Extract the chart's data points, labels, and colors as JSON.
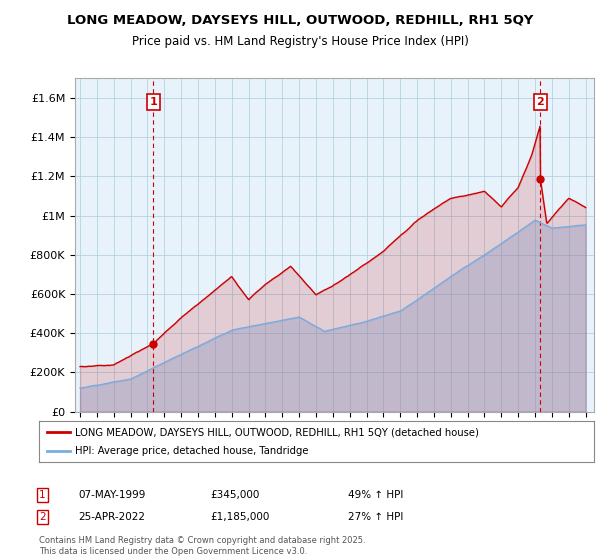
{
  "title": "LONG MEADOW, DAYSEYS HILL, OUTWOOD, REDHILL, RH1 5QY",
  "subtitle": "Price paid vs. HM Land Registry's House Price Index (HPI)",
  "legend_line1": "LONG MEADOW, DAYSEYS HILL, OUTWOOD, REDHILL, RH1 5QY (detached house)",
  "legend_line2": "HPI: Average price, detached house, Tandridge",
  "annotation1_date": "07-MAY-1999",
  "annotation1_price": "£345,000",
  "annotation1_hpi": "49% ↑ HPI",
  "annotation2_date": "25-APR-2022",
  "annotation2_price": "£1,185,000",
  "annotation2_hpi": "27% ↑ HPI",
  "footer": "Contains HM Land Registry data © Crown copyright and database right 2025.\nThis data is licensed under the Open Government Licence v3.0.",
  "red_color": "#cc0000",
  "blue_color": "#7aace0",
  "blue_fill": "#dce9f5",
  "chart_bg": "#e8f2fa",
  "grid_color": "#aaccdd",
  "background_color": "#ffffff",
  "ylim": [
    0,
    1700000
  ],
  "yticks": [
    0,
    200000,
    400000,
    600000,
    800000,
    1000000,
    1200000,
    1400000,
    1600000
  ],
  "ytick_labels": [
    "£0",
    "£200K",
    "£400K",
    "£600K",
    "£800K",
    "£1M",
    "£1.2M",
    "£1.4M",
    "£1.6M"
  ],
  "sale1_year": 1999.35,
  "sale1_price": 345000,
  "sale2_year": 2022.32,
  "sale2_price": 1185000
}
